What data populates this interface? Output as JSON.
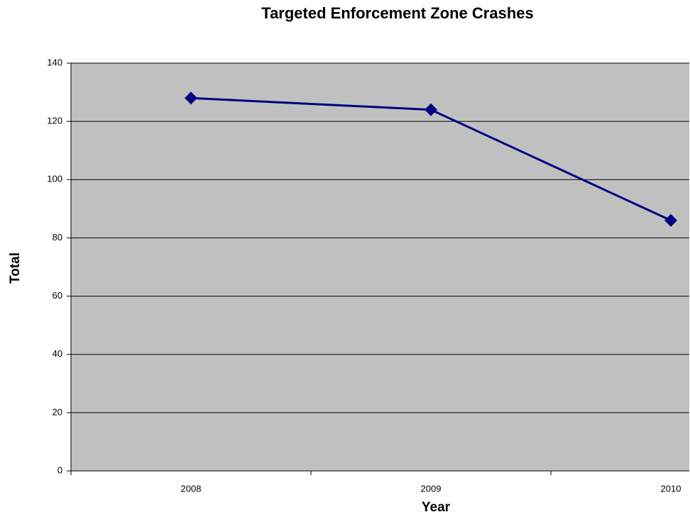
{
  "chart_data": {
    "type": "line",
    "title": "Targeted Enforcement Zone Crashes",
    "x_label": "Year",
    "y_label": "Total",
    "categories": [
      "2008",
      "2009",
      "2010"
    ],
    "series": [
      {
        "name": "Total",
        "color": "#000080",
        "values": [
          128,
          124,
          86
        ]
      }
    ],
    "ylim": [
      0,
      140
    ],
    "yticks": [
      0,
      20,
      40,
      60,
      80,
      100,
      120,
      140
    ],
    "grid": true,
    "plot_background": "#c0c0c0"
  }
}
